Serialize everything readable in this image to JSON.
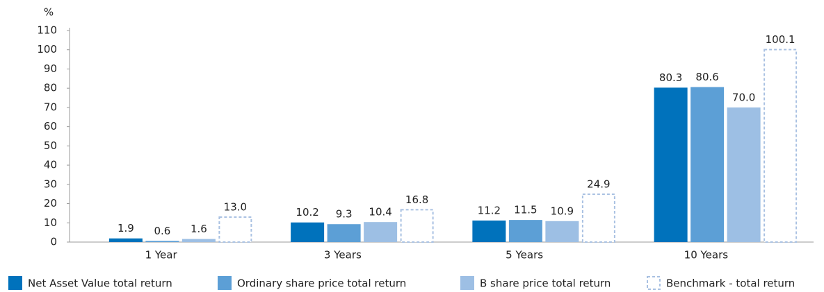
{
  "chart_data": {
    "type": "bar",
    "y_label": "%",
    "categories": [
      "1 Year",
      "3 Years",
      "5 Years",
      "10 Years"
    ],
    "series": [
      {
        "name": "Net Asset Value total return",
        "color": "#0072bc",
        "values": [
          1.9,
          10.2,
          11.2,
          80.3
        ],
        "value_labels": [
          "1.9",
          "10.2",
          "11.2",
          "80.3"
        ]
      },
      {
        "name": "Ordinary share price total return",
        "color": "#5c9fd6",
        "values": [
          0.6,
          9.3,
          11.5,
          80.6
        ],
        "value_labels": [
          "0.6",
          "9.3",
          "11.5",
          "80.6"
        ]
      },
      {
        "name": "B share price total return",
        "color": "#9dbfe4",
        "values": [
          1.6,
          10.4,
          10.9,
          70.0
        ],
        "value_labels": [
          "1.6",
          "10.4",
          "10.9",
          "70.0"
        ]
      },
      {
        "name": "Benchmark - total return",
        "color": "#a9c1e2",
        "dashed": true,
        "values": [
          13.0,
          16.8,
          24.9,
          100.1
        ],
        "value_labels": [
          "13.0",
          "16.8",
          "24.9",
          "100.1"
        ]
      }
    ],
    "ylim": [
      0,
      110
    ],
    "yticks": [
      0,
      10,
      20,
      30,
      40,
      50,
      60,
      70,
      80,
      90,
      100,
      110
    ]
  }
}
